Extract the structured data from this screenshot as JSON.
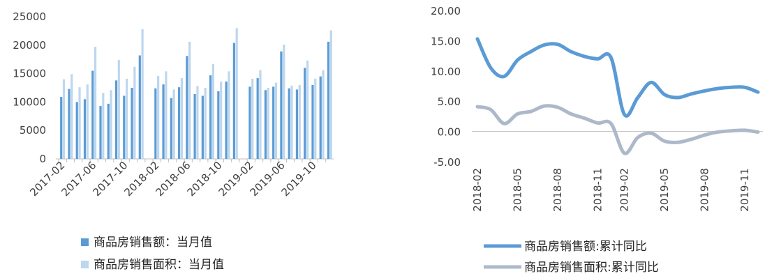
{
  "chart_data": [
    {
      "type": "bar",
      "categories": [
        "2017-02",
        "2017-03",
        "2017-04",
        "2017-05",
        "2017-06",
        "2017-07",
        "2017-08",
        "2017-09",
        "2017-10",
        "2017-11",
        "2017-12",
        "2018-01",
        "2018-02",
        "2018-03",
        "2018-04",
        "2018-05",
        "2018-06",
        "2018-07",
        "2018-08",
        "2018-09",
        "2018-10",
        "2018-11",
        "2018-12",
        "2019-01",
        "2019-02",
        "2019-03",
        "2019-04",
        "2019-05",
        "2019-06",
        "2019-07",
        "2019-08",
        "2019-09",
        "2019-10",
        "2019-11",
        "2019-12"
      ],
      "x_tick_labels": [
        "2017-02",
        "2017-06",
        "2017-10",
        "2018-02",
        "2018-06",
        "2018-10",
        "2019-02",
        "2019-06",
        "2019-10"
      ],
      "series": [
        {
          "name": "商品房销售额：当月值",
          "color": "#5b9bd5",
          "values": [
            10900,
            12300,
            10000,
            10500,
            15500,
            9300,
            9700,
            13800,
            11100,
            12500,
            18200,
            null,
            12400,
            13100,
            10700,
            12600,
            18100,
            11400,
            11100,
            14700,
            11900,
            13600,
            20400,
            null,
            12700,
            14200,
            12100,
            12700,
            18900,
            12400,
            12200,
            16000,
            13000,
            14500,
            20600
          ]
        },
        {
          "name": "商品房销售面积：当月值",
          "color": "#bdd7ee",
          "values": [
            14000,
            14900,
            12600,
            13100,
            19700,
            11600,
            12100,
            17400,
            14100,
            16200,
            22800,
            null,
            14600,
            15400,
            12200,
            14200,
            20600,
            12800,
            12500,
            16700,
            13600,
            15400,
            23000,
            null,
            14100,
            15600,
            12500,
            13400,
            20100,
            12900,
            13000,
            17300,
            14100,
            15600,
            22600
          ]
        }
      ],
      "y_ticks": [
        "25000",
        "20000",
        "15000",
        "10000",
        "5000",
        "0"
      ],
      "ylim": [
        0,
        25000
      ]
    },
    {
      "type": "line",
      "x": [
        "2018-02",
        "2018-03",
        "2018-04",
        "2018-05",
        "2018-06",
        "2018-07",
        "2018-08",
        "2018-09",
        "2018-10",
        "2018-11",
        "2018-12",
        "2019-02",
        "2019-03",
        "2019-04",
        "2019-05",
        "2019-06",
        "2019-07",
        "2019-08",
        "2019-09",
        "2019-10",
        "2019-11",
        "2019-12"
      ],
      "x_tick_labels": [
        "2018-02",
        "2018-05",
        "2018-08",
        "2018-11",
        "2019-02",
        "2019-05",
        "2019-08",
        "2019-11"
      ],
      "series": [
        {
          "name": "商品房销售额:累计同比",
          "color": "#5b9bd5",
          "values": [
            15.3,
            10.5,
            9.1,
            11.8,
            13.2,
            14.3,
            14.4,
            13.2,
            12.4,
            12.0,
            12.2,
            2.8,
            5.6,
            8.1,
            6.1,
            5.6,
            6.2,
            6.7,
            7.1,
            7.3,
            7.3,
            6.5
          ]
        },
        {
          "name": "商品房销售面积:累计同比",
          "color": "#adb9ca",
          "values": [
            4.1,
            3.6,
            1.3,
            2.9,
            3.3,
            4.2,
            4.0,
            2.9,
            2.2,
            1.4,
            1.3,
            -3.6,
            -1.0,
            -0.3,
            -1.6,
            -1.8,
            -1.3,
            -0.6,
            -0.1,
            0.1,
            0.2,
            -0.1
          ]
        }
      ],
      "y_ticks": [
        "20.00",
        "15.00",
        "10.00",
        "5.00",
        "0.00",
        "-5.00"
      ],
      "ylim": [
        -5,
        20
      ]
    }
  ]
}
